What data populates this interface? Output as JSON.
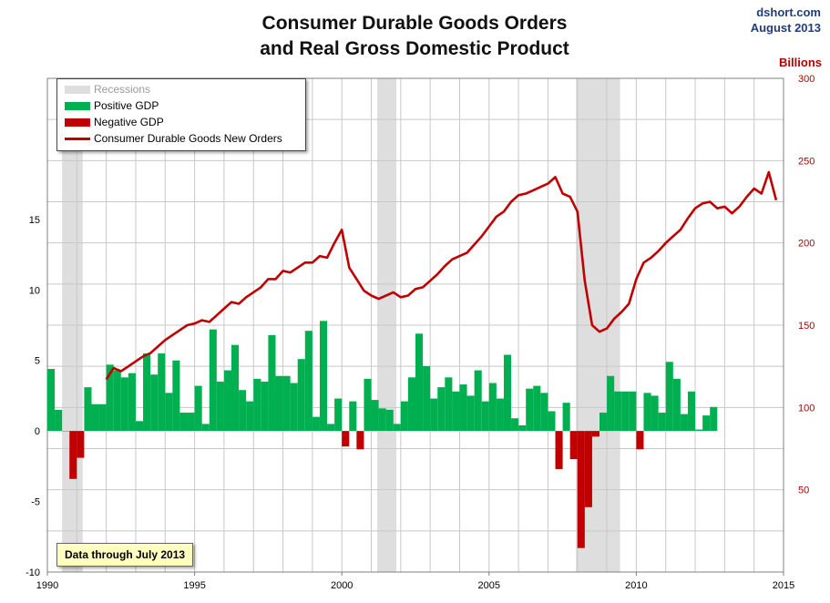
{
  "header": {
    "title_line1": "Consumer Durable Goods Orders",
    "title_line2": "and Real Gross Domestic Product",
    "source": "dshort.com",
    "date": "August 2013",
    "right_axis_units": "Billions"
  },
  "legend": {
    "recessions": "Recessions",
    "positive_gdp": "Positive GDP",
    "negative_gdp": "Negative GDP",
    "orders": "Consumer Durable Goods New Orders"
  },
  "note": "Data through July 2013",
  "colors": {
    "recession": "#dedede",
    "positive": "#00b050",
    "negative": "#c00000",
    "line": "#c00000",
    "right_axis_text": "#b30000",
    "grid": "#c8c8c8"
  },
  "chart_data": {
    "type": "bar+line",
    "x_ticks": [
      1990,
      1995,
      2000,
      2005,
      2010,
      2015
    ],
    "xlim": [
      1990,
      2015
    ],
    "left_axis": {
      "ticks": [
        -10,
        -5,
        0,
        5,
        10,
        15
      ],
      "ylim": [
        -10,
        25
      ]
    },
    "right_axis": {
      "label": "Billions",
      "ticks": [
        50,
        100,
        150,
        200,
        250,
        300
      ],
      "ylim": [
        0,
        300
      ]
    },
    "recessions": [
      [
        1990.5,
        1991.2
      ],
      [
        2001.2,
        2001.85
      ],
      [
        2007.95,
        2009.45
      ]
    ],
    "gdp": {
      "start": 1990.0,
      "step": 0.25,
      "values": [
        4.4,
        1.5,
        0.0,
        -3.4,
        -1.9,
        3.1,
        1.9,
        1.9,
        4.7,
        4.3,
        3.8,
        4.1,
        0.7,
        5.5,
        4.0,
        5.5,
        2.7,
        5.0,
        1.3,
        1.3,
        3.2,
        0.5,
        7.2,
        3.5,
        4.3,
        6.1,
        2.9,
        2.1,
        3.7,
        3.5,
        6.8,
        3.9,
        3.9,
        3.4,
        5.1,
        7.1,
        1.0,
        7.8,
        0.5,
        2.3,
        -1.1,
        2.1,
        -1.3,
        3.7,
        2.2,
        1.6,
        1.5,
        0.5,
        2.1,
        3.8,
        6.9,
        4.6,
        2.3,
        3.1,
        3.8,
        2.8,
        3.3,
        2.5,
        4.3,
        2.1,
        3.4,
        2.3,
        5.4,
        0.9,
        0.4,
        3.0,
        3.2,
        2.7,
        1.4,
        -2.7,
        2.0,
        -2.0,
        -8.3,
        -5.4,
        -0.4,
        1.3,
        3.9,
        2.8,
        2.8,
        2.8,
        -1.3,
        2.7,
        2.5,
        1.3,
        4.9,
        3.7,
        1.2,
        2.8,
        0.1,
        1.1,
        1.7
      ]
    },
    "orders": {
      "start": 1992.0,
      "step": 0.25,
      "values": [
        117,
        124,
        122,
        125,
        128,
        131,
        133,
        137,
        141,
        144,
        147,
        150,
        151,
        153,
        152,
        156,
        160,
        164,
        163,
        167,
        170,
        173,
        178,
        178,
        183,
        182,
        185,
        188,
        188,
        192,
        191,
        200,
        208,
        185,
        178,
        171,
        168,
        166,
        168,
        170,
        167,
        168,
        172,
        173,
        177,
        181,
        186,
        190,
        192,
        194,
        199,
        204,
        210,
        216,
        219,
        225,
        229,
        230,
        232,
        234,
        236,
        240,
        230,
        228,
        219,
        177,
        150,
        146,
        148,
        154,
        158,
        163,
        178,
        188,
        191,
        195,
        200,
        204,
        208,
        215,
        221,
        224,
        225,
        221,
        222,
        218,
        222,
        228,
        233,
        230,
        243,
        226
      ]
    }
  }
}
